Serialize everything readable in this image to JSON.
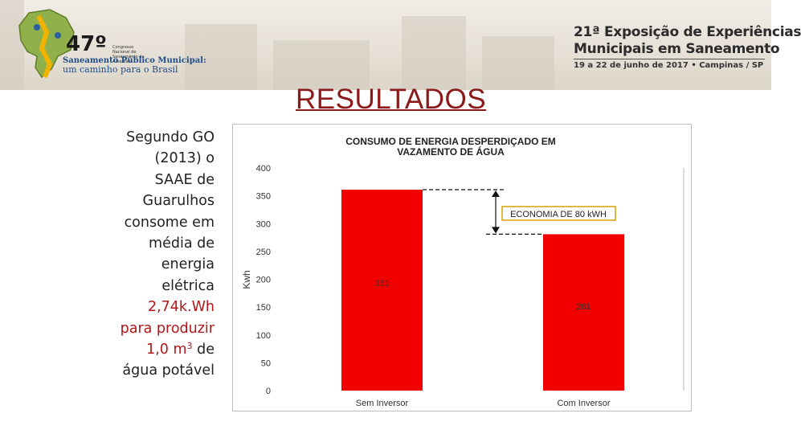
{
  "header": {
    "logo": {
      "number": "47º",
      "small_text": "Congresso Nacional de Saneamento da Assemae",
      "line1": "Saneamento Público Municipal:",
      "line2": "um caminho para o Brasil"
    },
    "event": {
      "line1": "21ª Exposição de Experiências",
      "line2": "Municipais em Saneamento",
      "line3": "19 a 22 de junho de 2017 • Campinas / SP"
    }
  },
  "slide": {
    "title": "RESULTADOS",
    "text": {
      "p1": [
        "Segundo GO",
        "(2013) o",
        "SAAE de",
        "Guarulhos",
        "consome em",
        "média de",
        "energia",
        "elétrica"
      ],
      "value": "2,74k.Wh",
      "p2": "para produzir",
      "volume_prefix": "1,0 m",
      "volume_sup": "3",
      "volume_suffix": " de",
      "p3": "água potável"
    }
  },
  "chart_data": {
    "type": "bar",
    "title_lines": [
      "CONSUMO DE ENERGIA DESPERDIÇADO EM",
      "VAZAMENTO DE ÁGUA"
    ],
    "categories": [
      "Sem Inversor",
      "Com Inversor"
    ],
    "values": [
      361,
      281
    ],
    "value_labels": [
      "361",
      "281"
    ],
    "ylabel": "Kwh",
    "ylim": [
      0,
      400
    ],
    "yticks": [
      "0",
      "50",
      "100",
      "150",
      "200",
      "250",
      "300",
      "350",
      "400"
    ],
    "annotation": "ECONOMIA DE 80 kWH",
    "colors": {
      "bar": "#f20000"
    }
  }
}
